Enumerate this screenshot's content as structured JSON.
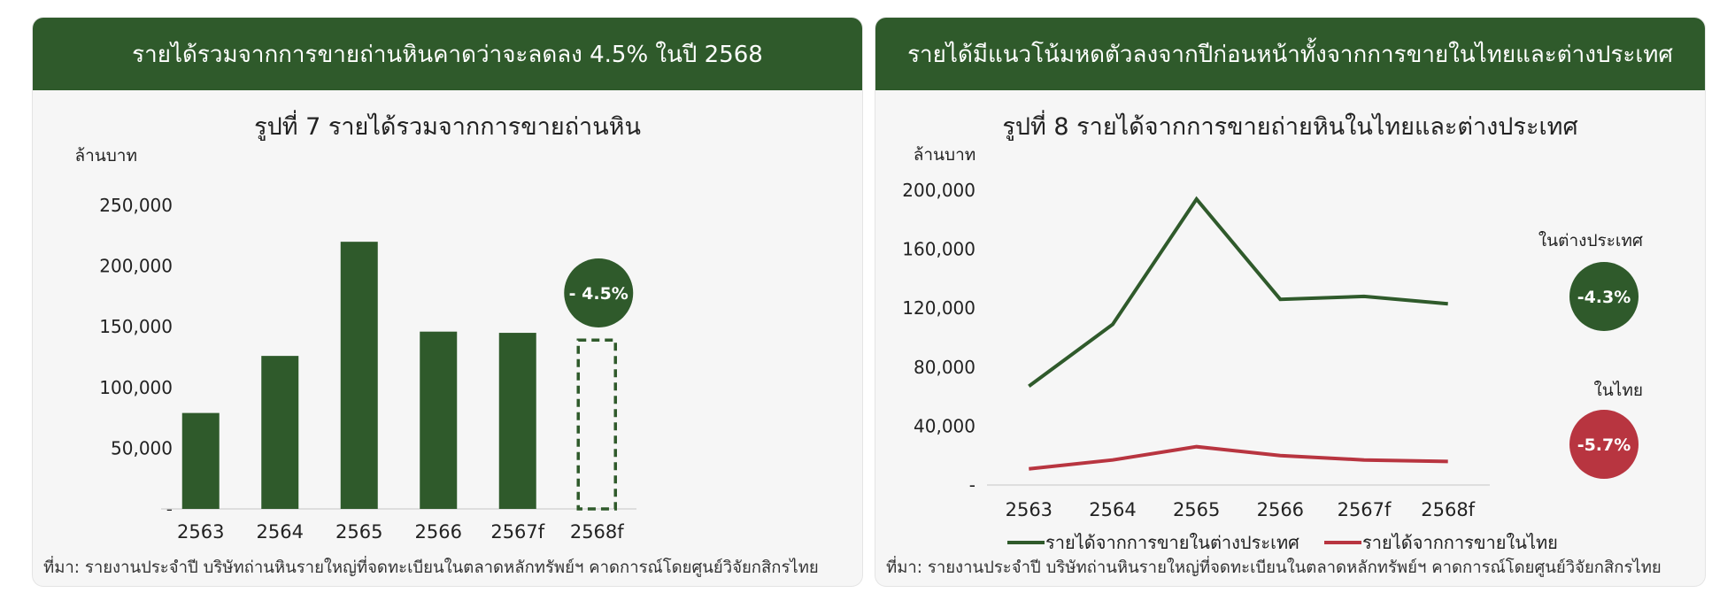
{
  "left": {
    "banner": "รายได้รวมจากการขายถ่านหินคาดว่าจะลดลง 4.5% ในปี 2568",
    "source": "ที่มา: รายงานประจำปี บริษัทถ่านหินรายใหญ่ที่จดทะเบียนในตลาดหลักทรัพย์ฯ คาดการณ์โดยศูนย์วิจัยกสิกรไทย"
  },
  "right": {
    "banner": "รายได้มีแนวโน้มหดตัวลงจากปีก่อนหน้าทั้งจากการขายในไทยและต่างประเทศ",
    "source": "ที่มา: รายงานประจำปี บริษัทถ่านหินรายใหญ่ที่จดทะเบียนในตลาดหลักทรัพย์ฯ คาดการณ์โดยศูนย์วิจัยกสิกรไทย"
  },
  "chart_data": [
    {
      "type": "bar",
      "title": "รูปที่ 7 รายได้รวมจากการขายถ่านหิน",
      "ylabel": "ล้านบาท",
      "categories": [
        "2563",
        "2564",
        "2565",
        "2566",
        "2567f",
        "2568f"
      ],
      "values": [
        79000,
        126000,
        220000,
        146000,
        145000,
        139000
      ],
      "forecast_dashed": [
        false,
        false,
        false,
        false,
        false,
        true
      ],
      "ylim": [
        0,
        250000
      ],
      "yticks": [
        "-",
        "50,000",
        "100,000",
        "150,000",
        "200,000",
        "250,000"
      ],
      "ytick_values": [
        0,
        50000,
        100000,
        150000,
        200000,
        250000
      ],
      "bar_color": "#2f5a2b",
      "grid": false,
      "annotations": [
        {
          "label": "- 4.5%",
          "category": "2568f",
          "color": "#2f5a2b"
        }
      ]
    },
    {
      "type": "line",
      "title": "รูปที่ 8 รายได้จากการขายถ่ายหินในไทยและต่างประเทศ",
      "ylabel": "ล้านบาท",
      "categories": [
        "2563",
        "2564",
        "2565",
        "2566",
        "2567f",
        "2568f"
      ],
      "ylim": [
        0,
        200000
      ],
      "yticks": [
        "-",
        "40,000",
        "80,000",
        "120,000",
        "160,000",
        "200,000"
      ],
      "ytick_values": [
        0,
        40000,
        80000,
        120000,
        160000,
        200000
      ],
      "grid": false,
      "legend_position": "bottom",
      "series": [
        {
          "name": "รายได้จากการขายในต่างประเทศ",
          "color": "#2f5a2b",
          "values": [
            67000,
            109000,
            194000,
            126000,
            128000,
            123000
          ],
          "end_label": "ในต่างประเทศ",
          "change_label": "-4.3%"
        },
        {
          "name": "รายได้จากการขายในไทย",
          "color": "#b83540",
          "values": [
            11000,
            17000,
            26000,
            20000,
            17000,
            16000
          ],
          "end_label": "ในไทย",
          "change_label": "-5.7%"
        }
      ]
    }
  ]
}
